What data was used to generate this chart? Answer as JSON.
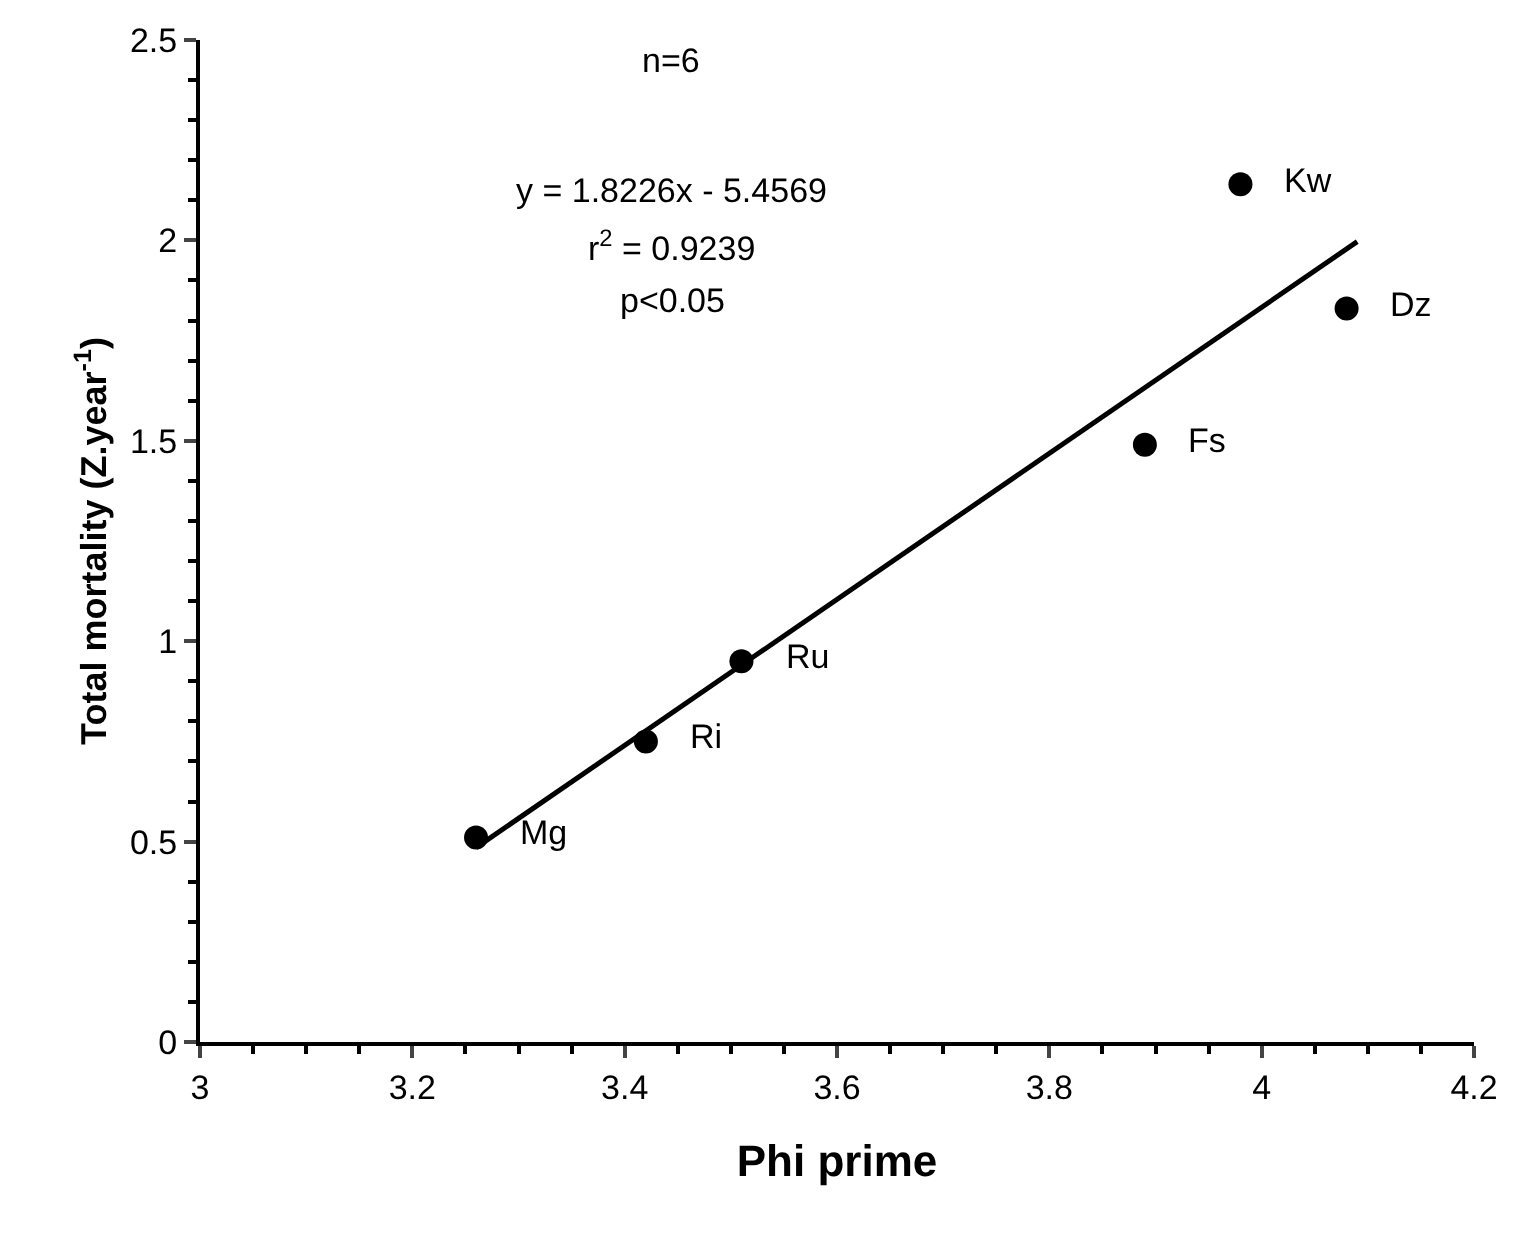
{
  "chart_data": {
    "type": "scatter",
    "xlabel": "Phi prime",
    "ylabel": "Total mortality (Z.year$^{-1}$)",
    "xlim": [
      3,
      4.2
    ],
    "xticks": [
      3,
      3.2,
      3.4,
      3.6,
      3.8,
      4,
      4.2
    ],
    "ylim": [
      0,
      2.5
    ],
    "yticks": [
      0,
      0.5,
      1,
      1.5,
      2,
      2.5
    ],
    "grid": false,
    "series": [
      {
        "marker": "circle",
        "color": "#000000",
        "x": [
          3.26,
          3.42,
          3.51,
          3.89,
          3.98,
          4.08
        ],
        "values": [
          0.51,
          0.75,
          0.95,
          1.49,
          2.14,
          1.83
        ]
      },
      {
        "type": "line",
        "marker": "none",
        "color": "#000000",
        "line_style": "solid",
        "x": [
          3.26,
          4.09
        ],
        "values": [
          0.485,
          1.997
        ]
      }
    ],
    "annotations": [
      "n=6",
      "y = 1.8226x - 5.4569",
      "r$^{2}$ = 0.9239",
      "p<0.05",
      {
        "text": "Mg",
        "x": 3.26,
        "y": 0.51
      },
      {
        "text": "Ri",
        "x": 3.42,
        "y": 0.75
      },
      {
        "text": "Ru",
        "x": 3.51,
        "y": 0.95
      },
      {
        "text": "Fs",
        "x": 3.89,
        "y": 1.49
      },
      {
        "text": "Kw",
        "x": 3.98,
        "y": 2.14
      },
      {
        "text": "Dz",
        "x": 4.08,
        "y": 1.83
      }
    ]
  }
}
